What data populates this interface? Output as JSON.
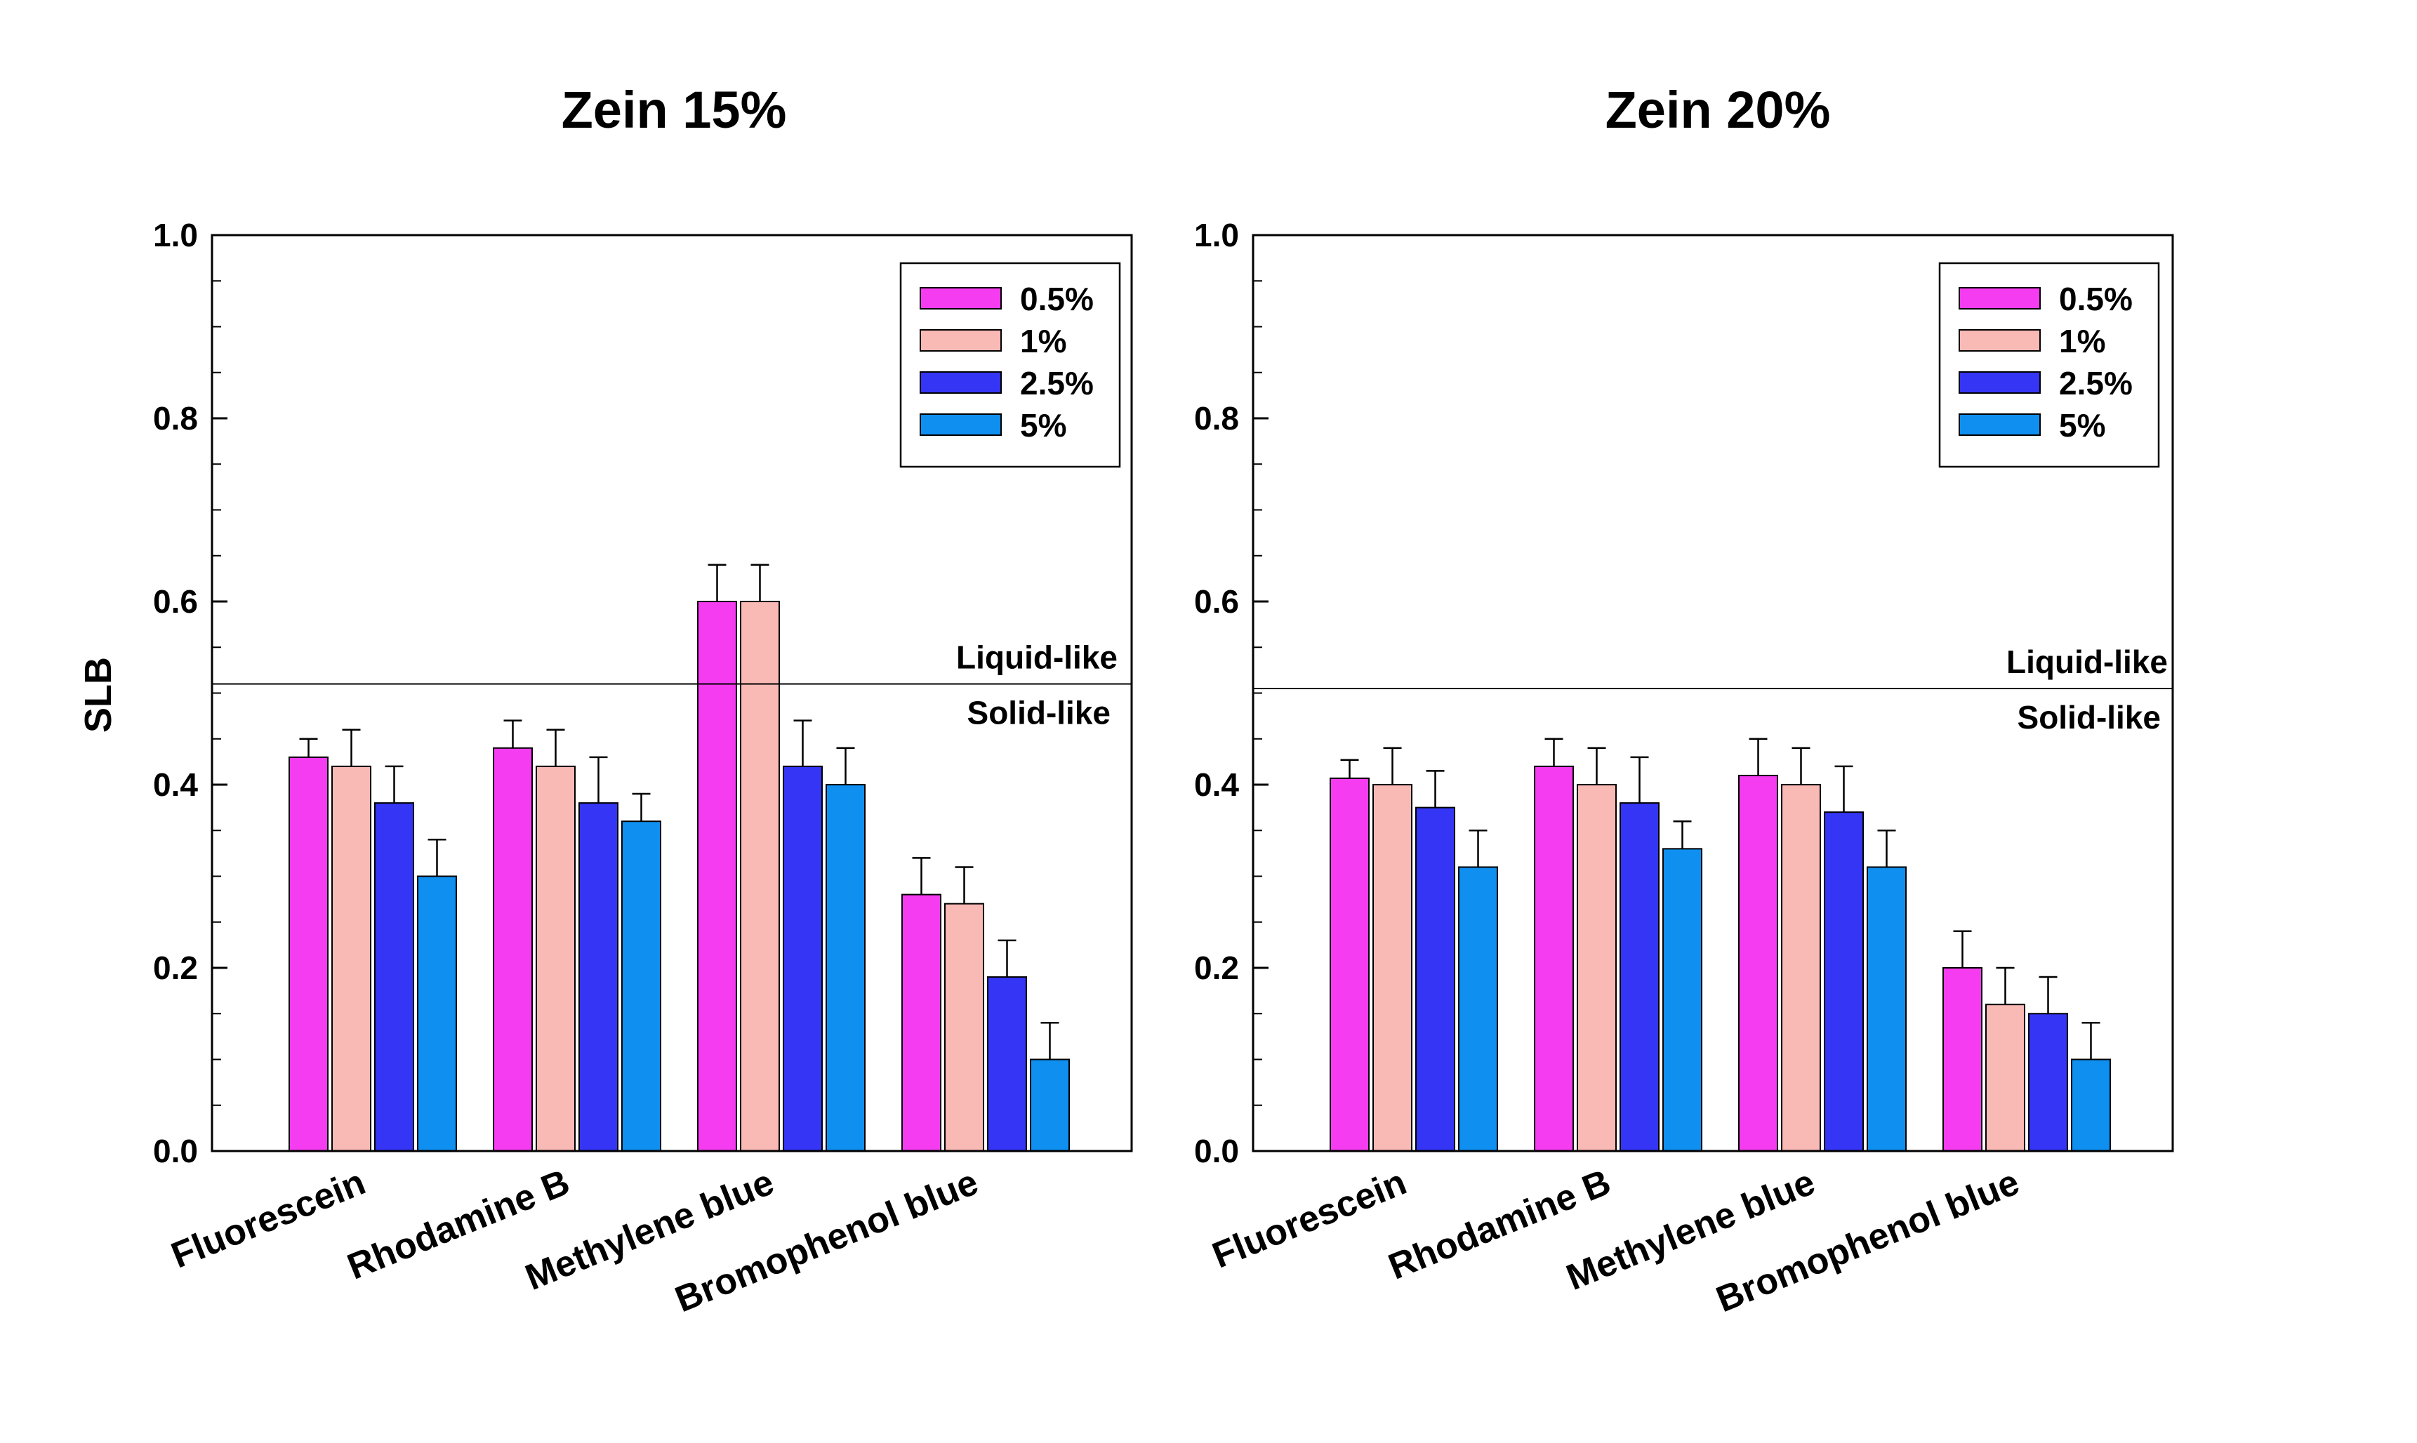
{
  "chart_data": [
    {
      "type": "bar",
      "title": "Zein 15%",
      "ylabel": "SLB",
      "xlabel": "",
      "ylim": [
        0,
        1.0
      ],
      "yticks": [
        "0.0",
        "0.2",
        "0.4",
        "0.6",
        "0.8",
        "1.0"
      ],
      "categories": [
        "Fluorescein",
        "Rhodamine B",
        "Methylene blue",
        "Bromophenol blue"
      ],
      "series": [
        {
          "name": "0.5%",
          "color": "#f53cf0",
          "values": [
            0.43,
            0.44,
            0.6,
            0.28
          ],
          "errors": [
            0.02,
            0.03,
            0.04,
            0.04
          ]
        },
        {
          "name": "1%",
          "color": "#f9b9b5",
          "values": [
            0.42,
            0.42,
            0.6,
            0.27
          ],
          "errors": [
            0.04,
            0.04,
            0.04,
            0.04
          ]
        },
        {
          "name": "2.5%",
          "color": "#3535f5",
          "values": [
            0.38,
            0.38,
            0.42,
            0.19
          ],
          "errors": [
            0.04,
            0.05,
            0.05,
            0.04
          ]
        },
        {
          "name": "5%",
          "color": "#0f8ff0",
          "values": [
            0.3,
            0.36,
            0.4,
            0.1
          ],
          "errors": [
            0.04,
            0.03,
            0.04,
            0.04
          ]
        }
      ],
      "threshold": {
        "value": 0.51,
        "label_above": "Liquid-like",
        "label_below": "Solid-like"
      },
      "legend_position": "top-right"
    },
    {
      "type": "bar",
      "title": "Zein 20%",
      "ylabel": "",
      "xlabel": "",
      "ylim": [
        0,
        1.0
      ],
      "yticks": [
        "0.0",
        "0.2",
        "0.4",
        "0.6",
        "0.8",
        "1.0"
      ],
      "categories": [
        "Fluorescein",
        "Rhodamine B",
        "Methylene blue",
        "Bromophenol blue"
      ],
      "series": [
        {
          "name": "0.5%",
          "color": "#f53cf0",
          "values": [
            0.407,
            0.42,
            0.41,
            0.2
          ],
          "errors": [
            0.02,
            0.03,
            0.04,
            0.04
          ]
        },
        {
          "name": "1%",
          "color": "#f9b9b5",
          "values": [
            0.4,
            0.4,
            0.4,
            0.16
          ],
          "errors": [
            0.04,
            0.04,
            0.04,
            0.04
          ]
        },
        {
          "name": "2.5%",
          "color": "#3535f5",
          "values": [
            0.375,
            0.38,
            0.37,
            0.15
          ],
          "errors": [
            0.04,
            0.05,
            0.05,
            0.04
          ]
        },
        {
          "name": "5%",
          "color": "#0f8ff0",
          "values": [
            0.31,
            0.33,
            0.31,
            0.1
          ],
          "errors": [
            0.04,
            0.03,
            0.04,
            0.04
          ]
        }
      ],
      "threshold": {
        "value": 0.505,
        "label_above": "Liquid-like",
        "label_below": "Solid-like"
      },
      "legend_position": "top-right"
    }
  ]
}
